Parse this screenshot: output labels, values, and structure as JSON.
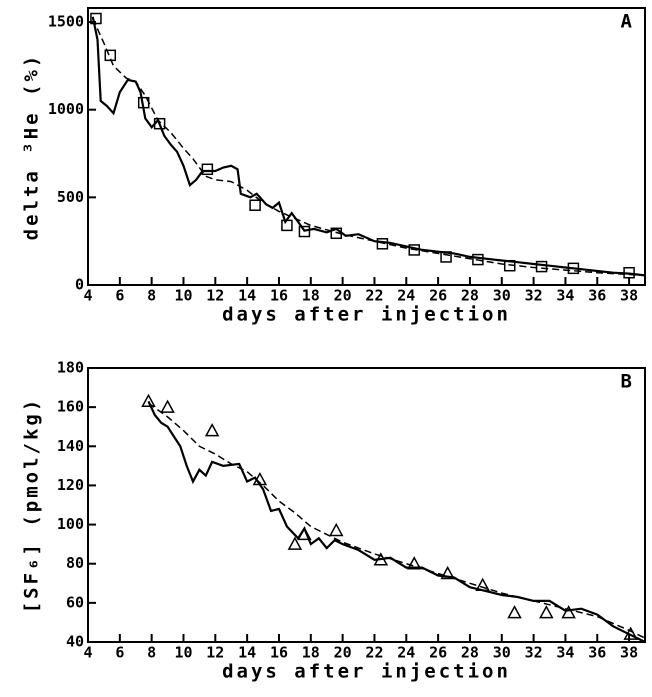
{
  "chart_data": [
    {
      "type": "line",
      "panel_label": "A",
      "xlabel": "days after injection",
      "ylabel": "delta ³He (%)",
      "xlim": [
        4,
        39
      ],
      "xticks": [
        4,
        6,
        8,
        10,
        12,
        14,
        16,
        18,
        20,
        22,
        24,
        26,
        28,
        30,
        32,
        34,
        36,
        38
      ],
      "ylim": [
        0,
        1580
      ],
      "yticks": [
        0,
        500,
        1000,
        1500
      ],
      "series": [
        {
          "linestyle": "solid",
          "color": "#000000",
          "x": [
            4.3,
            4.6,
            4.8,
            5.2,
            5.6,
            6,
            6.5,
            7,
            7.3,
            7.6,
            8,
            8.4,
            8.8,
            9.2,
            9.6,
            10,
            10.4,
            10.8,
            11.2,
            12,
            12.5,
            13,
            13.4,
            13.6,
            14.2,
            14.6,
            15.2,
            15.6,
            16,
            16.4,
            16.8,
            17.2,
            17.6,
            18.2,
            19,
            19.6,
            20.2,
            21,
            22,
            23,
            24,
            25,
            26,
            27,
            28,
            29,
            30,
            31,
            32,
            33,
            34,
            35,
            36,
            37,
            38,
            39
          ],
          "values": [
            1530,
            1400,
            1050,
            1020,
            980,
            1100,
            1170,
            1160,
            1100,
            950,
            900,
            940,
            850,
            800,
            760,
            680,
            570,
            600,
            650,
            650,
            670,
            680,
            660,
            520,
            500,
            520,
            460,
            440,
            470,
            360,
            410,
            360,
            310,
            320,
            300,
            320,
            280,
            290,
            250,
            240,
            220,
            200,
            190,
            180,
            160,
            150,
            140,
            130,
            120,
            110,
            100,
            90,
            80,
            70,
            65,
            55
          ]
        },
        {
          "linestyle": "dashed",
          "color": "#000000",
          "x": [
            4.3,
            5,
            5.6,
            6.4,
            7,
            7.6,
            8.4,
            9.2,
            10,
            10.6,
            11.4,
            12,
            13,
            14,
            15,
            16,
            17,
            18,
            20,
            22,
            24,
            26,
            28,
            30,
            32,
            34,
            36,
            38,
            39
          ],
          "values": [
            1520,
            1380,
            1250,
            1180,
            1160,
            1080,
            940,
            870,
            780,
            720,
            620,
            600,
            590,
            540,
            470,
            420,
            380,
            340,
            290,
            250,
            210,
            180,
            150,
            120,
            100,
            85,
            70,
            60,
            55
          ]
        },
        {
          "marker": "square",
          "color": "#000000",
          "x": [
            4.5,
            5.4,
            7.5,
            8.5,
            11.5,
            14.5,
            16.5,
            17.6,
            19.6,
            22.5,
            24.5,
            26.5,
            28.5,
            30.5,
            32.5,
            34.5,
            38
          ],
          "values": [
            1520,
            1310,
            1040,
            920,
            660,
            455,
            340,
            305,
            295,
            235,
            200,
            160,
            145,
            110,
            105,
            95,
            70
          ]
        }
      ]
    },
    {
      "type": "line",
      "panel_label": "B",
      "xlabel": "days after injection",
      "ylabel": "[SF₆] (pmol/kg)",
      "xlim": [
        4,
        39
      ],
      "xticks": [
        4,
        6,
        8,
        10,
        12,
        14,
        16,
        18,
        20,
        22,
        24,
        26,
        28,
        30,
        32,
        34,
        36,
        38
      ],
      "ylim": [
        40,
        180
      ],
      "yticks": [
        40,
        60,
        80,
        100,
        120,
        140,
        160,
        180
      ],
      "series": [
        {
          "linestyle": "solid",
          "color": "#000000",
          "x": [
            7.8,
            8.2,
            8.6,
            9,
            9.4,
            9.8,
            10.2,
            10.6,
            11,
            11.4,
            11.8,
            12.5,
            13.5,
            14,
            14.5,
            15,
            15.5,
            16,
            16.5,
            17.2,
            17.6,
            18,
            18.5,
            19,
            19.5,
            20,
            21,
            22,
            23,
            24,
            25,
            26,
            27,
            28,
            29,
            30,
            31,
            32,
            33,
            34,
            35,
            36,
            37,
            38,
            39
          ],
          "values": [
            163,
            156,
            152,
            150,
            145,
            140,
            130,
            122,
            128,
            125,
            132,
            130,
            131,
            122,
            124,
            118,
            107,
            108,
            99,
            93,
            98,
            90,
            93,
            88,
            92,
            90,
            87,
            82,
            83,
            78,
            78,
            74,
            73,
            68,
            66,
            64,
            63,
            61,
            61,
            56,
            57,
            54,
            48,
            44,
            40
          ]
        },
        {
          "linestyle": "dashed",
          "color": "#000000",
          "x": [
            7.8,
            9,
            10,
            11,
            12,
            13,
            14,
            15,
            16,
            17,
            18,
            19,
            20,
            22,
            24,
            26,
            28,
            30,
            32,
            34,
            36,
            38,
            39
          ],
          "values": [
            162,
            155,
            148,
            140,
            136,
            131,
            127,
            120,
            112,
            106,
            99,
            95,
            91,
            85,
            80,
            75,
            70,
            65,
            61,
            57,
            53,
            46,
            42
          ]
        },
        {
          "marker": "triangle",
          "color": "#000000",
          "x": [
            7.8,
            9,
            11.8,
            14.8,
            17,
            17.6,
            19.6,
            22.4,
            24.5,
            26.6,
            28.8,
            30.8,
            32.8,
            34.2,
            38.1
          ],
          "values": [
            163,
            160,
            148,
            123,
            90,
            95,
            97,
            82,
            80,
            75,
            69,
            55,
            55,
            55,
            44
          ]
        }
      ]
    }
  ]
}
